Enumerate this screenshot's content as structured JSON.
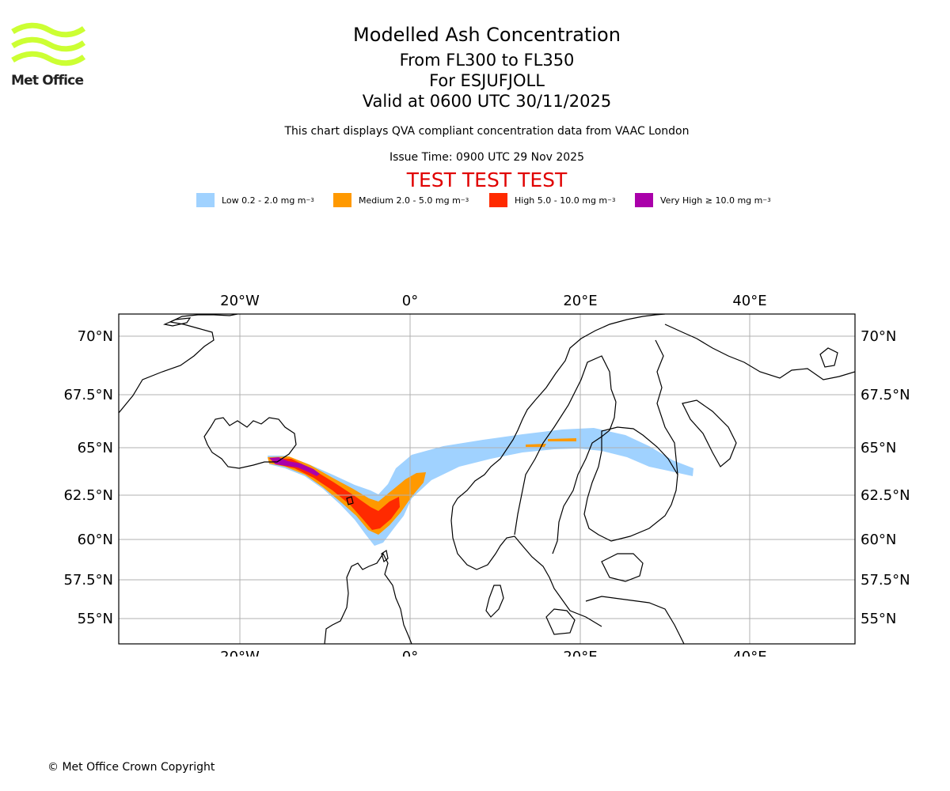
{
  "brand": {
    "name": "Met Office",
    "logo_color": "#ccff33"
  },
  "header": {
    "title": "Modelled Ash Concentration",
    "level": "From FL300 to FL350",
    "volcano": "For ESJUFJOLL",
    "valid": "Valid at 0600 UTC 30/11/2025",
    "note": "This chart displays QVA compliant concentration data from VAAC London",
    "issue_time": "Issue Time: 0900 UTC 29 Nov 2025",
    "test_banner": "TEST TEST TEST"
  },
  "legend": [
    {
      "label": "Low 0.2 - 2.0 mg m",
      "unit_exp": "−3",
      "color": "#a0d2ff"
    },
    {
      "label": "Medium 2.0 - 5.0 mg m",
      "unit_exp": "−3",
      "color": "#ff9900"
    },
    {
      "label": "High 5.0 - 10.0 mg m",
      "unit_exp": "−3",
      "color": "#ff2a00"
    },
    {
      "label": "Very High  ≥  10.0 mg m",
      "unit_exp": "−3",
      "color": "#aa00aa"
    }
  ],
  "map": {
    "lon_ticks": [
      "20°W",
      "0°",
      "20°E",
      "40°E"
    ],
    "lat_ticks": [
      "70°N",
      "67.5°N",
      "65°N",
      "62.5°N",
      "60°N",
      "57.5°N",
      "55°N"
    ]
  },
  "footer": {
    "copyright": "© Met Office Crown Copyright"
  }
}
